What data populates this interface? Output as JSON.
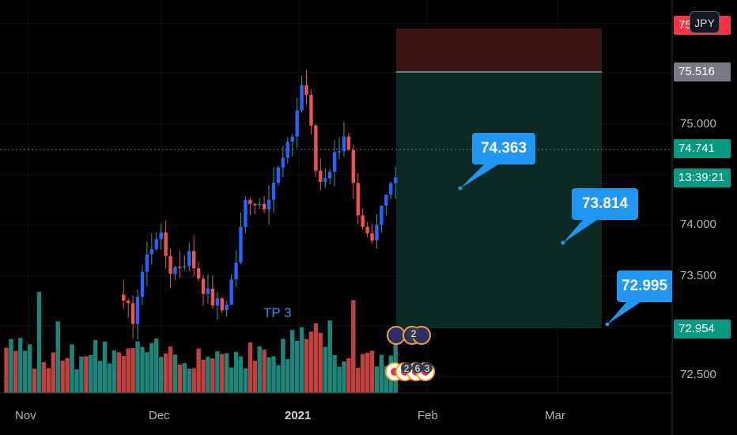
{
  "currency_button": "JPY",
  "price_badges": {
    "top_red": "75",
    "stop": "75.516",
    "current": "74.741",
    "countdown": "13:39:21",
    "target": "72.954"
  },
  "callouts": {
    "c1": "74.363",
    "c2": "73.814",
    "c3": "72.995"
  },
  "tp_label": "TP 3",
  "event_badges": [
    "2",
    "2",
    "6",
    "3"
  ],
  "chart_data": {
    "type": "candlestick",
    "y_ticks": [
      "75.000",
      "74.000",
      "73.500",
      "72.500"
    ],
    "x_ticks": [
      "Nov",
      "Dec",
      "2021",
      "Feb",
      "Mar"
    ],
    "colors": {
      "up": "#2962ff",
      "down": "#ef5350",
      "vol_up": "#26a69a",
      "vol_down": "#ef5350",
      "stop_zone": "#3b1414",
      "target_zone": "#0c2a24",
      "callout": "#2196f3"
    }
  }
}
